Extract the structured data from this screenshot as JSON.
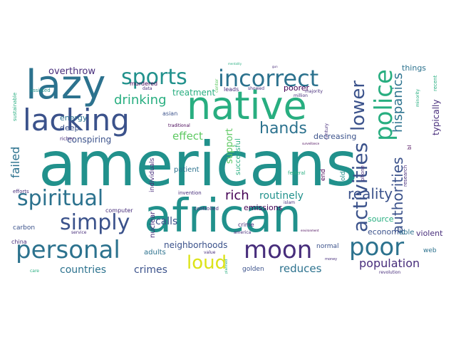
{
  "palette": {
    "dark_purple": "#440154",
    "indigo": "#472d7b",
    "blue": "#3b528b",
    "steel": "#2c728e",
    "teal": "#21918c",
    "green": "#28ae80",
    "light_green": "#5ec962",
    "yellow_green": "#addc30",
    "yellow": "#dce319"
  },
  "words": {
    "americans": "americans",
    "african": "african",
    "native": "native",
    "lazy": "lazy",
    "lacking": "lacking",
    "incorrect": "incorrect",
    "sports": "sports",
    "personal": "personal",
    "moon": "moon",
    "poor": "poor",
    "spiritual": "spiritual",
    "simply": "simply",
    "loud": "loud",
    "hands": "hands",
    "police": "police",
    "activities": "activities",
    "lower": "lower",
    "authorities": "authorities",
    "hispanics": "hispanics",
    "reality": "reality",
    "drinking": "drinking",
    "rich": "rich",
    "routinely": "routinely",
    "population": "population",
    "reduces": "reduces",
    "countries": "countries",
    "crimes": "crimes",
    "neighborhoods": "neighborhoods",
    "failed": "failed",
    "overthrow": "overthrow",
    "effect": "effect",
    "conspiring": "conspiring",
    "calls": "calls",
    "economic": "economic",
    "source": "source",
    "treatment": "treatment",
    "energy": "energy",
    "deep": "deep",
    "decreasing": "decreasing",
    "emissions": "emissions",
    "poorer": "poorer",
    "things": "things",
    "typically": "typically",
    "violent": "violent",
    "able": "able",
    "support": "support",
    "successful": "successful",
    "adults": "adults",
    "leads": "leads",
    "showed": "showed",
    "majority": "majority",
    "million": "million",
    "patient": "patient",
    "golden": "golden",
    "normal": "normal",
    "carbon": "carbon",
    "web": "web",
    "old": "old",
    "end": "end",
    "murdered": "murdered",
    "asian": "asian",
    "traditional": "traditional",
    "data": "data",
    "sustainable": "sustainable",
    "assisted": "assisted",
    "richer": "richer",
    "efforts": "efforts",
    "individuals": "individuals",
    "invention": "invention",
    "computer": "computer",
    "service": "service",
    "nuclear": "nuclear",
    "china": "china",
    "care": "care",
    "crime": "crime",
    "america": "america",
    "controlled": "controlled",
    "islam": "islam",
    "federal": "federal",
    "value": "value",
    "money": "money",
    "revolution": "revolution",
    "phone": "phone",
    "research": "research",
    "century": "century",
    "recent": "recent",
    "minority": "minority",
    "center": "center",
    "mentality": "mentality",
    "surveillance": "surveillance",
    "gun": "gun",
    "planned": "planned",
    "environment": "environment",
    "bl": "bl"
  }
}
